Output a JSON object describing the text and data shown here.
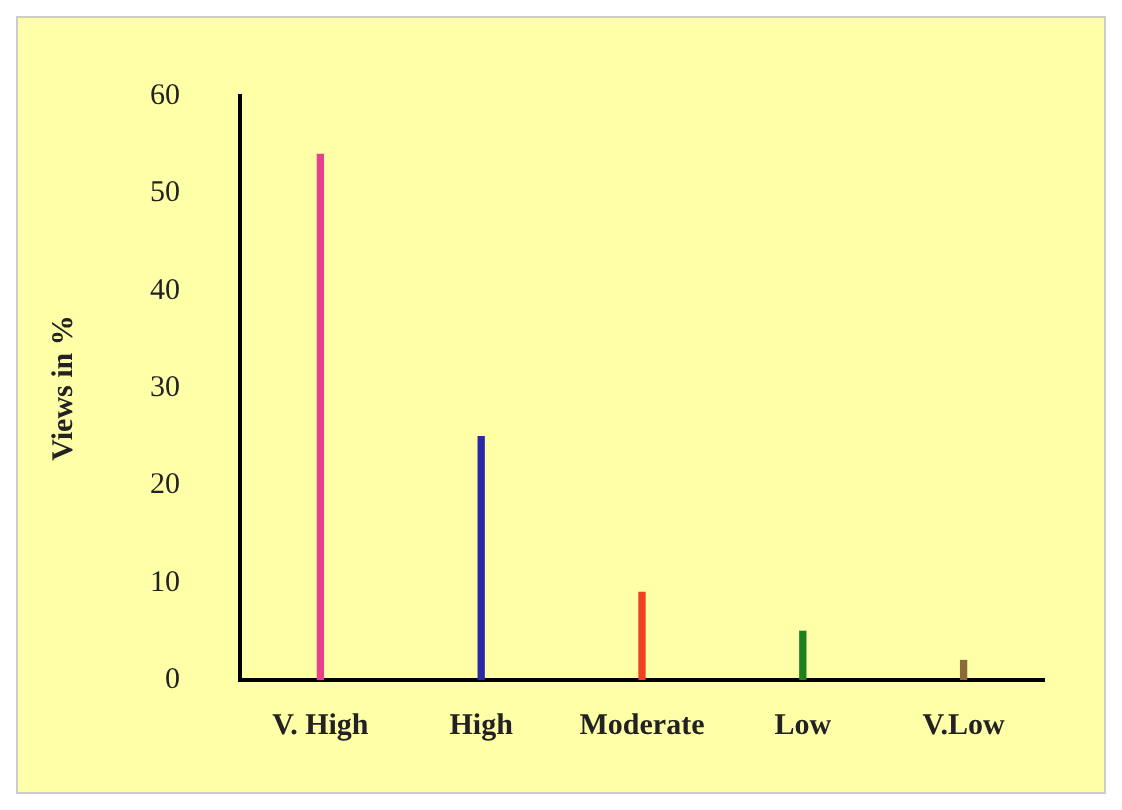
{
  "chart_data": {
    "type": "bar",
    "ylabel": "Views in %",
    "categories": [
      "V. High",
      "High",
      "Moderate",
      "Low",
      "V.Low"
    ],
    "values": [
      54,
      25,
      9,
      5,
      2
    ],
    "colors": [
      "#e8408a",
      "#2a2aa8",
      "#f04020",
      "#208020",
      "#8a6a3a"
    ],
    "ylim": [
      0,
      60
    ],
    "yticks": [
      0,
      10,
      20,
      30,
      40,
      50,
      60
    ],
    "grid": false,
    "legend": false
  }
}
